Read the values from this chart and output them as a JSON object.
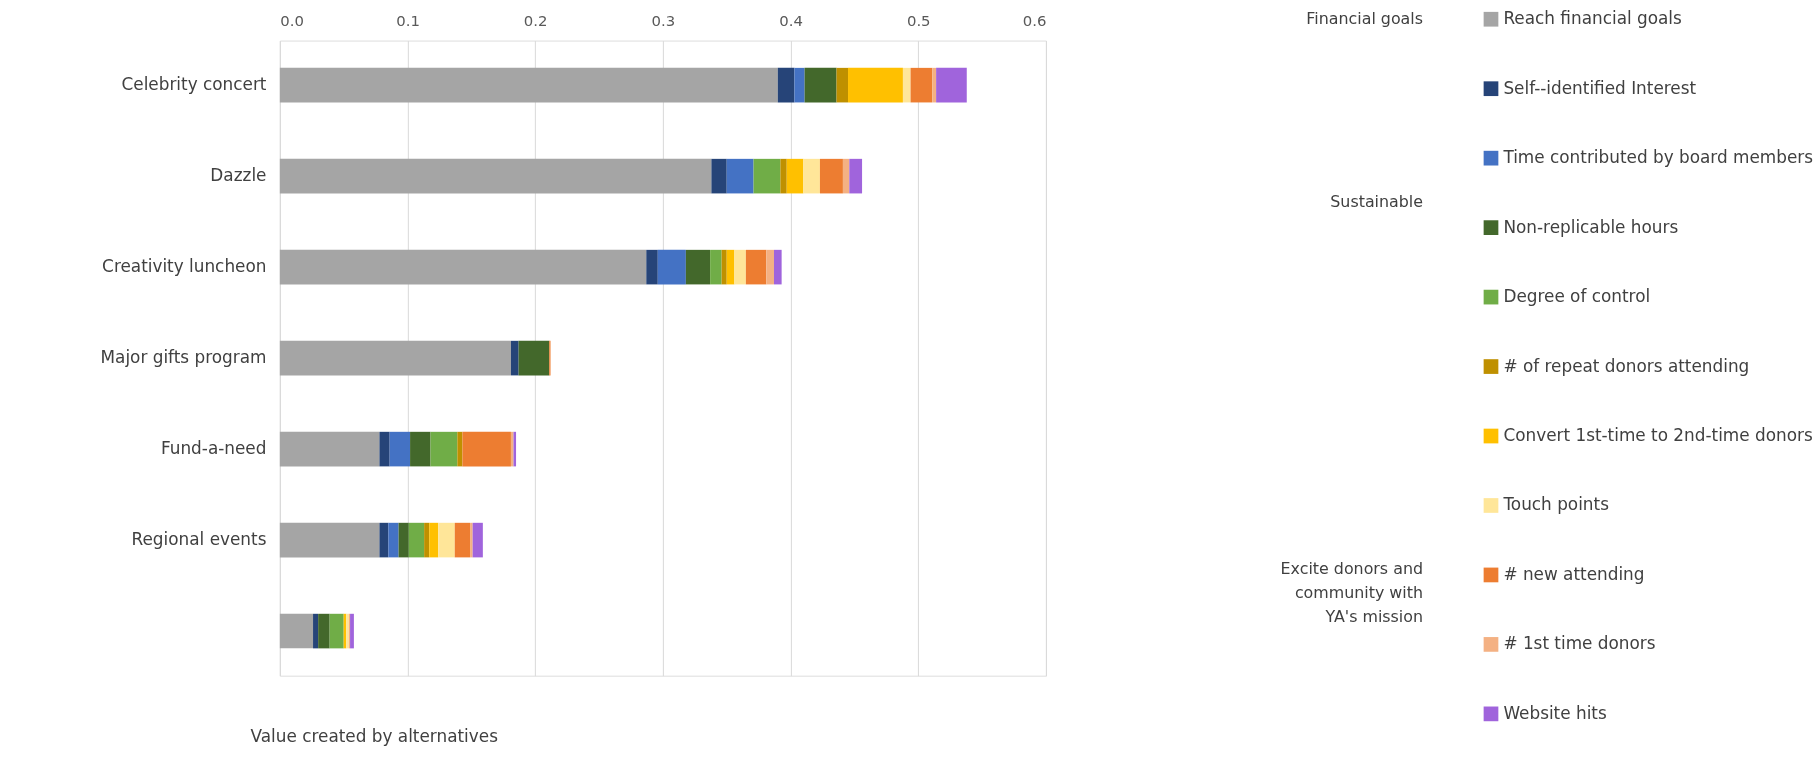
{
  "chart_data": {
    "type": "bar",
    "orientation": "horizontal",
    "stacked": true,
    "categories": [
      "Celebrity concert",
      "Dazzle",
      "Creativity luncheon",
      "Major gifts program",
      "Fund-a-need",
      "Regional events",
      null
    ],
    "series": [
      {
        "name": "Reach financial goals",
        "color": "#a5a5a5",
        "values": [
          0.39,
          0.338,
          0.287,
          0.181,
          0.078,
          0.078,
          0.026
        ]
      },
      {
        "name": "Self--identified Interest",
        "color": "#264478",
        "values": [
          0.013,
          0.012,
          0.009,
          0.006,
          0.008,
          0.007,
          0.004
        ]
      },
      {
        "name": "Time contributed by board members",
        "color": "#4472c4",
        "values": [
          0.008,
          0.021,
          0.022,
          0,
          0.016,
          0.008,
          0
        ]
      },
      {
        "name": "Non-replicable hours",
        "color": "#43682b",
        "values": [
          0.025,
          0,
          0.019,
          0.024,
          0.016,
          0.008,
          0.009
        ]
      },
      {
        "name": "Degree of control",
        "color": "#70ad47",
        "values": [
          0,
          0.021,
          0.009,
          0,
          0.021,
          0.012,
          0.011
        ]
      },
      {
        "name": "# of repeat donors attending",
        "color": "#bf9000",
        "values": [
          0.009,
          0.005,
          0.004,
          0,
          0.004,
          0.004,
          0
        ]
      },
      {
        "name": "Convert 1st-time to 2nd-time donors",
        "color": "#ffc000",
        "values": [
          0.043,
          0.013,
          0.006,
          0,
          0,
          0.007,
          0.002
        ]
      },
      {
        "name": "Touch points",
        "color": "#ffe699",
        "values": [
          0.006,
          0.013,
          0.009,
          0,
          0,
          0.013,
          0.002
        ]
      },
      {
        "name": "# new attending",
        "color": "#ed7d31",
        "values": [
          0.017,
          0.018,
          0.016,
          0.001,
          0.038,
          0.012,
          0
        ]
      },
      {
        "name": "# 1st time donors",
        "color": "#f4b183",
        "values": [
          0.003,
          0.005,
          0.006,
          0,
          0.002,
          0.002,
          0.001
        ]
      },
      {
        "name": "Website hits",
        "color": "#a064dc",
        "values": [
          0.024,
          0.01,
          0.006,
          0,
          0.002,
          0.008,
          0.003
        ]
      }
    ],
    "xlim": [
      0,
      0.6
    ],
    "xticks": [
      {
        "value": 0,
        "label": "0.0"
      },
      0.1,
      0.2,
      0.3,
      0.4,
      0.5,
      0.6
    ],
    "xlabel": "Value created by alternatives",
    "grid": "x",
    "legend": "right",
    "annotations": [
      "Financial goals",
      "Sustainable",
      "Excite donors and community with YA's mission"
    ]
  }
}
